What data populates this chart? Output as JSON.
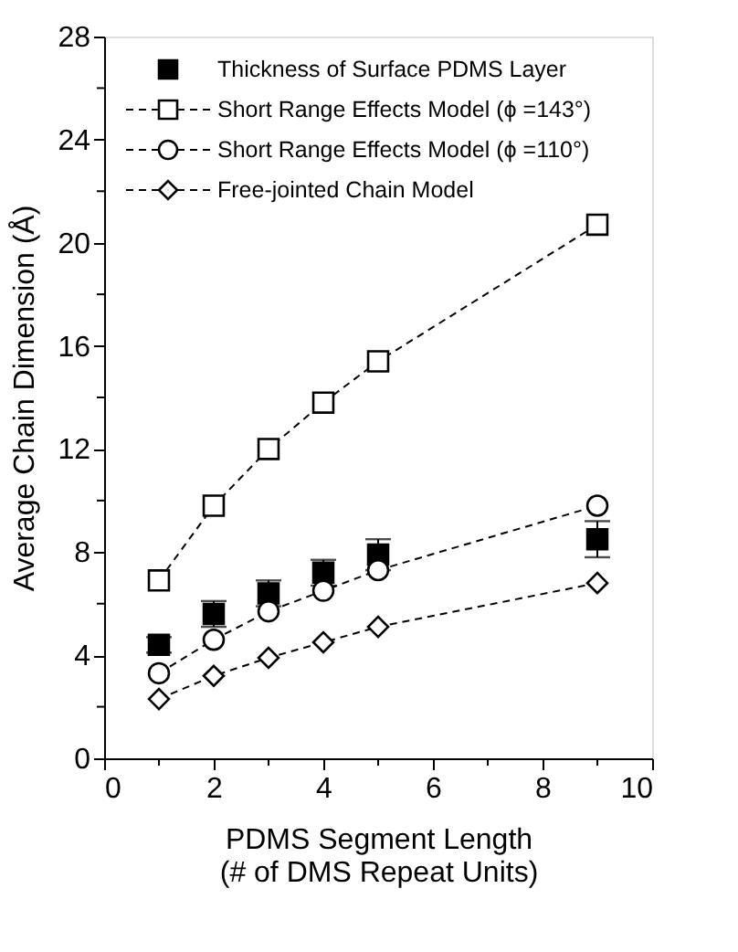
{
  "chart_data": {
    "type": "line",
    "xlabel": "PDMS Segment Length\n(# of DMS Repeat Units)",
    "ylabel": "Average Chain Dimension (Å)",
    "x": [
      1,
      2,
      3,
      4,
      5,
      9
    ],
    "series": [
      {
        "name": "Thickness of Surface PDMS Layer",
        "type": "scatter",
        "marker": "square",
        "color": "#000000",
        "values": [
          4.4,
          5.6,
          6.4,
          7.2,
          7.9,
          8.5
        ],
        "errors": [
          0.3,
          0.5,
          0.5,
          0.5,
          0.6,
          0.7
        ]
      },
      {
        "name": "Short Range Effects Model (ϕ =143°)",
        "type": "line",
        "marker": "square",
        "line_style": "dashed",
        "color": "#000000",
        "values": [
          6.9,
          9.8,
          12.0,
          13.8,
          15.4,
          20.7
        ]
      },
      {
        "name": "Short Range Effects Model (ϕ =110°)",
        "type": "line",
        "marker": "circle",
        "line_style": "dashed",
        "color": "#000000",
        "values": [
          3.3,
          4.6,
          5.7,
          6.5,
          7.3,
          9.8
        ]
      },
      {
        "name": "Free-jointed Chain Model",
        "type": "line",
        "marker": "diamond",
        "line_style": "dashed",
        "color": "#000000",
        "values": [
          2.3,
          3.2,
          3.9,
          4.5,
          5.1,
          6.8
        ]
      }
    ],
    "xlim": [
      0,
      10
    ],
    "xticks": [
      0,
      {
        "value": 1,
        "label": null
      },
      2,
      {
        "value": 3,
        "label": null
      },
      4,
      {
        "value": 5,
        "label": null
      },
      6,
      {
        "value": 7,
        "label": null
      },
      8,
      {
        "value": 9,
        "label": null
      },
      10
    ],
    "ylim": [
      0,
      28
    ],
    "yticks": [
      0,
      {
        "value": 2,
        "label": null
      },
      4,
      {
        "value": 6,
        "label": null
      },
      8,
      {
        "value": 10,
        "label": null
      },
      12,
      {
        "value": 14,
        "label": null
      },
      16,
      {
        "value": 18,
        "label": null
      },
      20,
      {
        "value": 22,
        "label": null
      },
      24,
      {
        "value": 26,
        "label": null
      },
      28
    ],
    "grid": false,
    "legend": "top left"
  }
}
